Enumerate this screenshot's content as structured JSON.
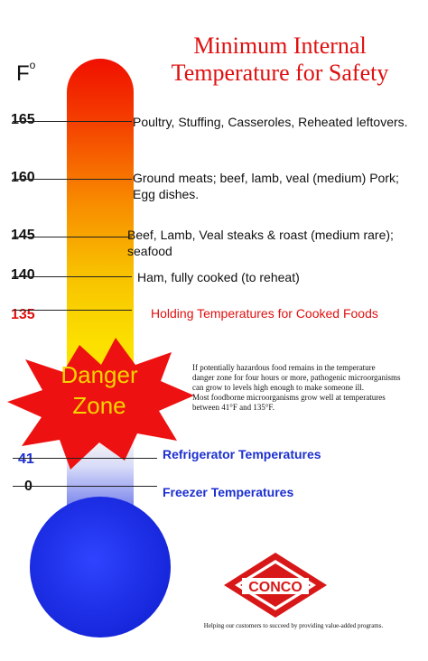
{
  "title": {
    "line1": "Minimum Internal",
    "line2": "Temperature for Safety"
  },
  "unit": {
    "label": "F",
    "sup": "o"
  },
  "scale": [
    {
      "value": "165",
      "label_lines": [
        "Poultry, Stuffing, Casseroles, Reheated leftovers."
      ]
    },
    {
      "value": "160",
      "label_lines": [
        "Ground meats; beef, lamb, veal (medium) Pork;",
        "Egg dishes."
      ]
    },
    {
      "value": "145",
      "label_lines": [
        "Beef, Lamb, Veal steaks & roast (medium rare);",
        "seafood"
      ]
    },
    {
      "value": "140",
      "label_lines": [
        "Ham, fully cooked (to reheat)"
      ]
    },
    {
      "value": "135",
      "label_lines": [
        "Holding Temperatures for Cooked Foods"
      ]
    },
    {
      "value": "41",
      "label_lines": [
        "Refrigerator Temperatures"
      ]
    },
    {
      "value": "0",
      "label_lines": [
        "Freezer Temperatures"
      ]
    }
  ],
  "danger": {
    "line1": "Danger",
    "line2": "Zone"
  },
  "note": [
    "If potentially hazardous food remains in the temperature",
    "danger zone for four hours or more, pathogenic microorganisms",
    "can grow to levels high enough to make someone ill.",
    "Most foodborne microorganisms grow well at temperatures",
    "between 41°F and 135°F."
  ],
  "logo": {
    "text": "CONCO"
  },
  "footer": "Helping our customers to succeed by providing value-added programs.",
  "colors": {
    "title_red": "#e01010",
    "bulb_blue": "#1a2fe8",
    "label_blue": "#1c2fd0",
    "star_red": "#ee1111",
    "star_text": "#f4d400",
    "logo_red": "#d81818"
  }
}
